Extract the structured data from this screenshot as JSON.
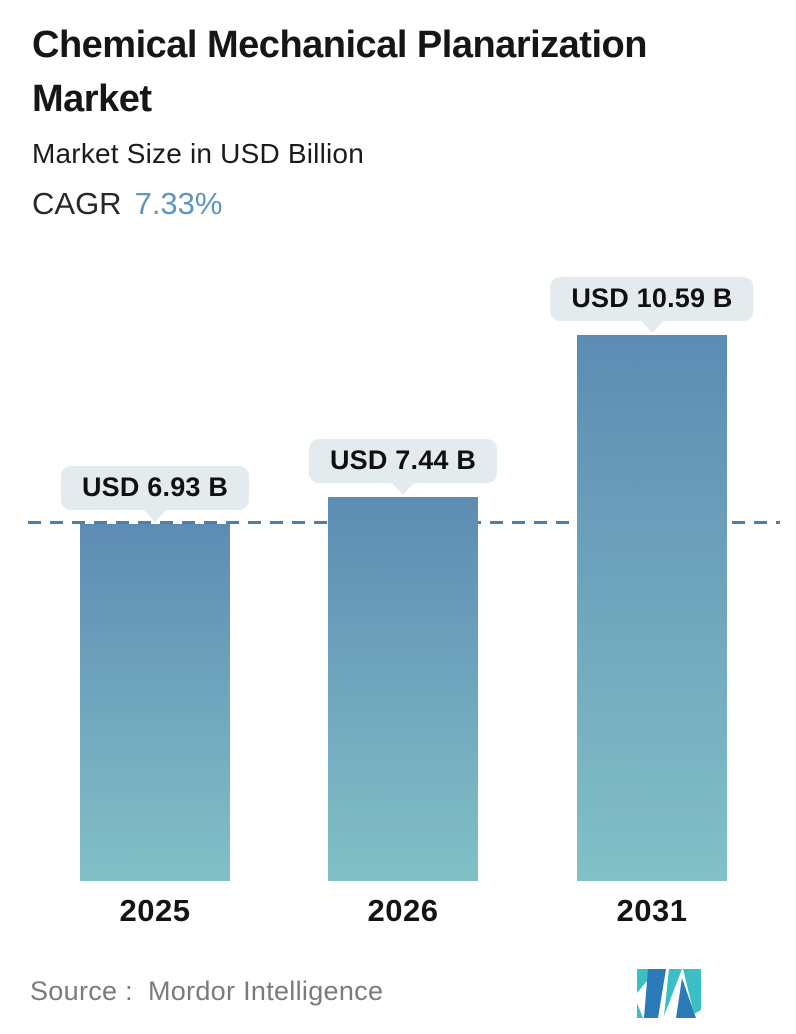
{
  "header": {
    "title": "Chemical Mechanical Planarization Market",
    "subtitle": "Market Size in USD Billion",
    "cagr_label": "CAGR",
    "cagr_value": "7.33%"
  },
  "chart_data": {
    "type": "bar",
    "categories": [
      "2025",
      "2026",
      "2031"
    ],
    "values": [
      6.93,
      7.44,
      10.59
    ],
    "value_labels": [
      "USD 6.93 B",
      "USD 7.44 B",
      "USD 10.59 B"
    ],
    "title": "Chemical Mechanical Planarization Market",
    "xlabel": "",
    "ylabel": "Market Size in USD Billion",
    "ylim": [
      0,
      11.5
    ],
    "grid": false,
    "legend": false,
    "reference_line": {
      "style": "dashed",
      "value": 6.93,
      "color": "#4c80a8"
    },
    "bar_gradient_top": "#5d8cb3",
    "bar_gradient_bottom": "#82c0c7",
    "tooltip_bg": "#e4ebee"
  },
  "footer": {
    "source_label": "Source :",
    "source_value": "Mordor Intelligence",
    "logo_name": "mordor-intelligence-logo",
    "logo_colors": {
      "teal": "#3bbfc4",
      "blue": "#2b7ab8"
    }
  },
  "colors": {
    "title": "#161616",
    "cagr_value": "#5e95c5",
    "source_text": "#7b7b7b"
  }
}
